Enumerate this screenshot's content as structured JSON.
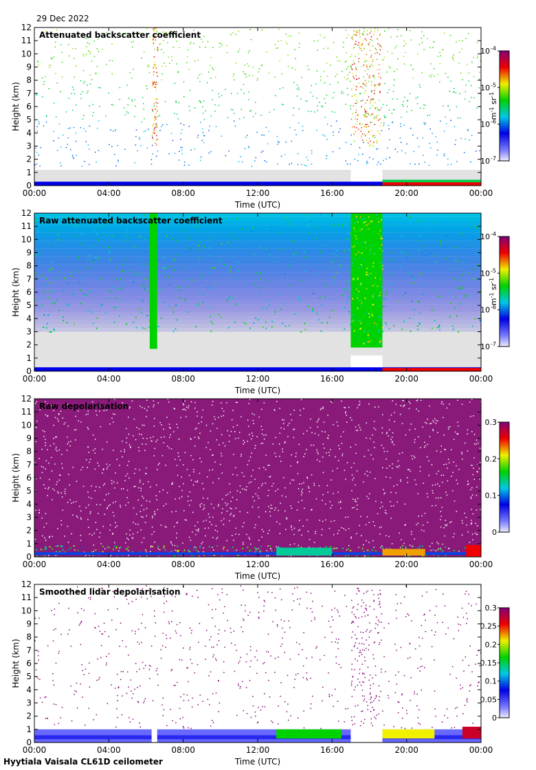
{
  "date": "29 Dec 2022",
  "footer": "Hyytiala Vaisala CL61D ceilometer",
  "chart_data": [
    {
      "type": "heatmap",
      "title": "Attenuated backscatter coefficient",
      "xlabel": "Time (UTC)",
      "ylabel": "Height (km)",
      "xticks": [
        "00:00",
        "04:00",
        "08:00",
        "12:00",
        "16:00",
        "20:00",
        "00:00"
      ],
      "xlim": [
        0,
        24
      ],
      "yticks": [
        0,
        1,
        2,
        3,
        4,
        5,
        6,
        7,
        8,
        9,
        10,
        11,
        12
      ],
      "ylim": [
        0,
        12
      ],
      "colorbar": {
        "scale": "log",
        "ticks": [
          "10",
          "10",
          "10",
          "10"
        ],
        "tick_exponents": [
          "-7",
          "-6",
          "-5",
          "-4"
        ],
        "tick_values": [
          0,
          0.3333,
          0.6667,
          1
        ],
        "label": "m",
        "label_exp1": "-1",
        "label_mid": " sr",
        "label_exp2": "-1"
      }
    },
    {
      "type": "heatmap",
      "title": "Raw attenuated backscatter coefficient",
      "xlabel": "Time (UTC)",
      "ylabel": "Height (km)",
      "xticks": [
        "00:00",
        "04:00",
        "08:00",
        "12:00",
        "16:00",
        "20:00",
        "00:00"
      ],
      "xlim": [
        0,
        24
      ],
      "yticks": [
        0,
        1,
        2,
        3,
        4,
        5,
        6,
        7,
        8,
        9,
        10,
        11,
        12
      ],
      "ylim": [
        0,
        12
      ],
      "colorbar": {
        "scale": "log",
        "ticks": [
          "10",
          "10",
          "10",
          "10"
        ],
        "tick_exponents": [
          "-7",
          "-6",
          "-5",
          "-4"
        ],
        "tick_values": [
          0,
          0.3333,
          0.6667,
          1
        ],
        "label": "m",
        "label_exp1": "-1",
        "label_mid": " sr",
        "label_exp2": "-1"
      }
    },
    {
      "type": "heatmap",
      "title": "Raw depolarisation",
      "xlabel": "Time (UTC)",
      "ylabel": "Height (km)",
      "xticks": [
        "00:00",
        "04:00",
        "08:00",
        "12:00",
        "16:00",
        "20:00",
        "00:00"
      ],
      "xlim": [
        0,
        24
      ],
      "yticks": [
        0,
        1,
        2,
        3,
        4,
        5,
        6,
        7,
        8,
        9,
        10,
        11,
        12
      ],
      "ylim": [
        0,
        12
      ],
      "colorbar": {
        "scale": "linear",
        "ticks": [
          "0",
          "0.1",
          "0.2",
          "0.3"
        ],
        "tick_values": [
          0,
          0.3333,
          0.6667,
          1
        ]
      }
    },
    {
      "type": "heatmap",
      "title": "Smoothed lidar depolarisation",
      "xlabel": "Time (UTC)",
      "ylabel": "Height (km)",
      "xticks": [
        "00:00",
        "04:00",
        "08:00",
        "12:00",
        "16:00",
        "20:00",
        "00:00"
      ],
      "xlim": [
        0,
        24
      ],
      "yticks": [
        0,
        1,
        2,
        3,
        4,
        5,
        6,
        7,
        8,
        9,
        10,
        11,
        12
      ],
      "ylim": [
        0,
        12
      ],
      "colorbar": {
        "scale": "linear",
        "ticks": [
          "0",
          "0.05",
          "0.1",
          "0.15",
          "0.2",
          "0.25",
          "0.3"
        ],
        "tick_values": [
          0,
          0.1667,
          0.3333,
          0.5,
          0.6667,
          0.8333,
          1
        ]
      }
    }
  ]
}
